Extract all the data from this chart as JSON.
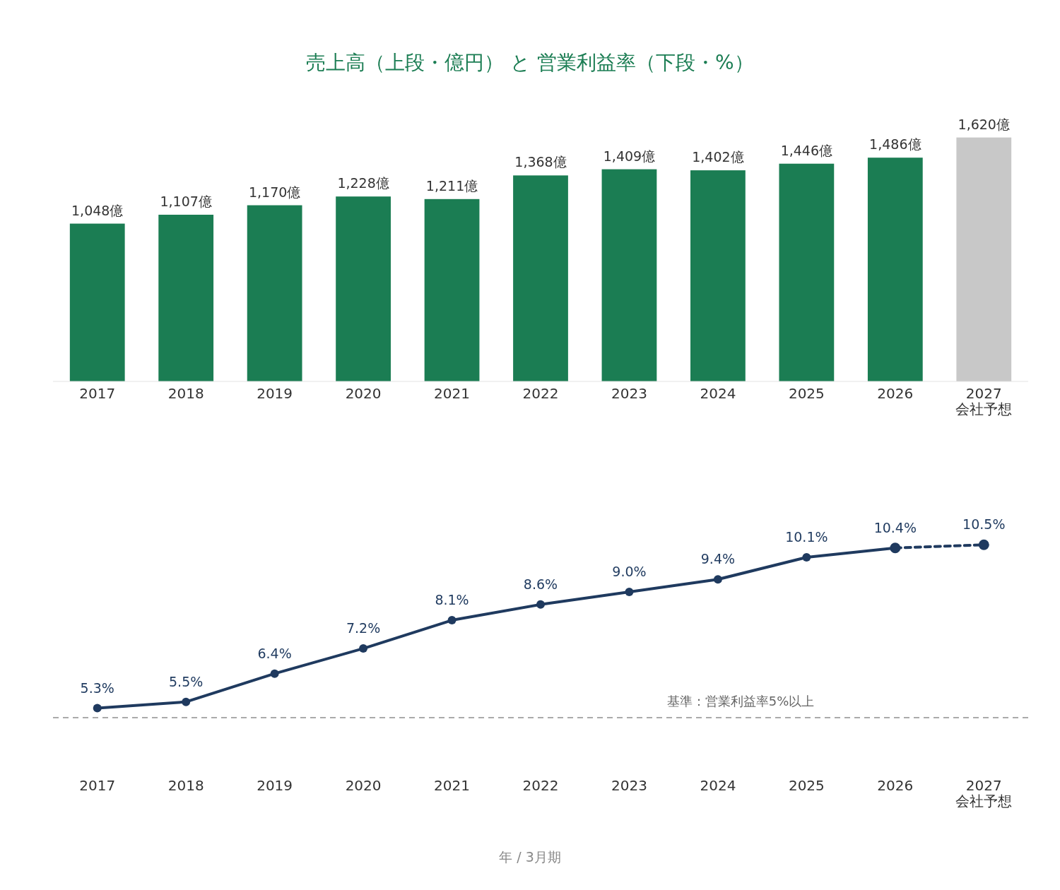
{
  "chart_data": [
    {
      "type": "bar",
      "title": "売上高（上段・億円） と 営業利益率（下段・%）",
      "categories": [
        "2017",
        "2018",
        "2019",
        "2020",
        "2021",
        "2022",
        "2023",
        "2024",
        "2025",
        "2026",
        "2027\n会社予想"
      ],
      "values": [
        1048,
        1107,
        1170,
        1228,
        1211,
        1368,
        1409,
        1402,
        1446,
        1486,
        1620
      ],
      "colors": [
        "#1b7d53",
        "#1b7d53",
        "#1b7d53",
        "#1b7d53",
        "#1b7d53",
        "#1b7d53",
        "#1b7d53",
        "#1b7d53",
        "#1b7d53",
        "#1b7d53",
        "#c8c8c8"
      ],
      "value_labels": [
        "1,048億",
        "1,107億",
        "1,170億",
        "1,228億",
        "1,211億",
        "1,368億",
        "1,409億",
        "1,402億",
        "1,446億",
        "1,486億",
        "1,620億"
      ],
      "tick_labels": "x"
    },
    {
      "type": "line",
      "xlabel": "年 / 3月期",
      "categories": [
        "2017",
        "2018",
        "2019",
        "2020",
        "2021",
        "2022",
        "2023",
        "2024",
        "2025",
        "2026",
        "2027\n会社予想"
      ],
      "series": [
        {
          "color": "#1f3a5f",
          "line_style": "solid",
          "marker": "circle",
          "values": [
            5.3,
            5.5,
            6.4,
            7.2,
            8.1,
            8.6,
            9.0,
            9.4,
            10.1,
            10.4,
            null
          ],
          "value_labels": [
            "5.3%",
            "5.5%",
            "6.4%",
            "7.2%",
            "8.1%",
            "8.6%",
            "9.0%",
            "9.4%",
            "10.1%",
            "10.4%",
            null
          ]
        },
        {
          "color": "#1f3a5f",
          "line_style": "dashed",
          "marker": "circle",
          "values": [
            null,
            null,
            null,
            null,
            null,
            null,
            null,
            null,
            null,
            10.4,
            10.5
          ],
          "value_labels": [
            null,
            null,
            null,
            null,
            null,
            null,
            null,
            null,
            null,
            null,
            "10.5%"
          ]
        }
      ],
      "tick_labels": "x",
      "ref_lines": [
        {
          "axis": "y",
          "value": 5,
          "label": "基準：営業利益率5%以上",
          "color": "#aaaaaa",
          "line_style": "dashed"
        }
      ]
    }
  ]
}
